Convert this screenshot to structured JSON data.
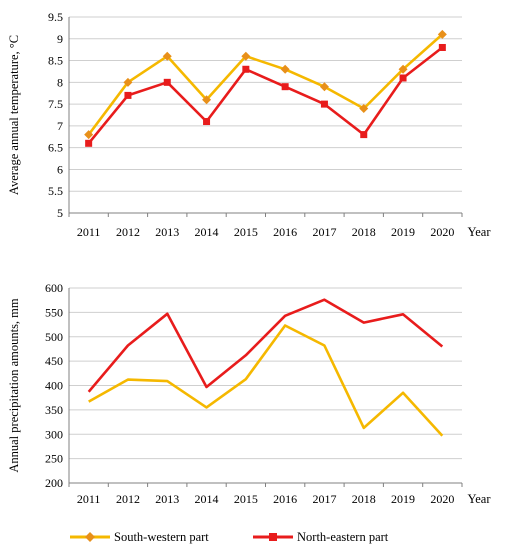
{
  "colors": {
    "south_western": "#F5B800",
    "north_eastern": "#E81C1C",
    "grid": "#CFCFCF",
    "axis": "#808080"
  },
  "legend": {
    "south_western": "South-western part",
    "north_eastern": "North-eastern part"
  },
  "chart_data": [
    {
      "type": "line",
      "ylabel": "Average annual temperature, °C",
      "xlabel": "Year",
      "ylim": [
        5,
        9.5
      ],
      "yticks": [
        "5",
        "5.5",
        "6",
        "6.5",
        "7",
        "7.5",
        "8",
        "8.5",
        "9",
        "9.5"
      ],
      "categories": [
        "2011",
        "2012",
        "2013",
        "2014",
        "2015",
        "2016",
        "2017",
        "2018",
        "2019",
        "2020"
      ],
      "grid": true,
      "legend_position": "bottom",
      "series": [
        {
          "name": "South-western part",
          "marker": "diamond",
          "values": [
            6.8,
            8.0,
            8.6,
            7.6,
            8.6,
            8.3,
            7.9,
            7.4,
            8.3,
            9.1
          ]
        },
        {
          "name": "North-eastern part",
          "marker": "square",
          "values": [
            6.6,
            7.7,
            8.0,
            7.1,
            8.3,
            7.9,
            7.5,
            6.8,
            8.1,
            8.8
          ]
        }
      ]
    },
    {
      "type": "line",
      "ylabel": "Annual precipitation amounts, mm",
      "xlabel": "Year",
      "ylim": [
        200,
        600
      ],
      "yticks": [
        "200",
        "250",
        "300",
        "350",
        "400",
        "450",
        "500",
        "550",
        "600"
      ],
      "categories": [
        "2011",
        "2012",
        "2013",
        "2014",
        "2015",
        "2016",
        "2017",
        "2018",
        "2019",
        "2020"
      ],
      "grid": true,
      "legend_position": "bottom",
      "series": [
        {
          "name": "South-western part",
          "marker": "none",
          "values": [
            367,
            412,
            409,
            355,
            413,
            523,
            482,
            313,
            385,
            297
          ]
        },
        {
          "name": "North-eastern part",
          "marker": "none",
          "values": [
            387,
            482,
            547,
            397,
            462,
            543,
            576,
            529,
            546,
            480
          ]
        }
      ]
    }
  ]
}
